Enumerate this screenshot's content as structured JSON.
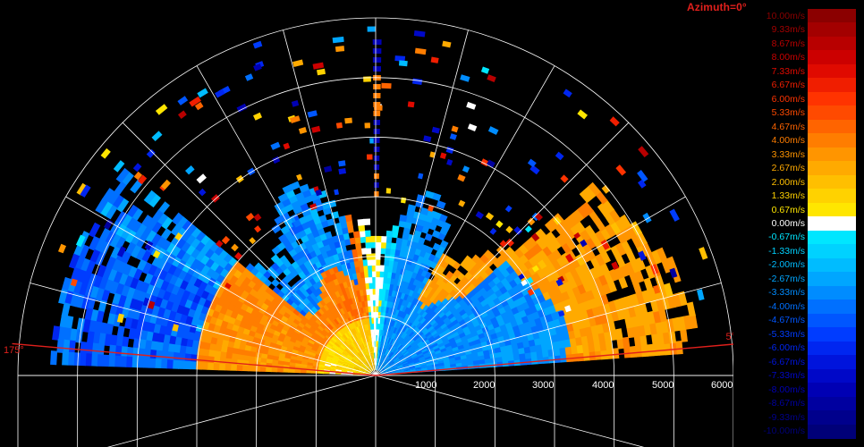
{
  "title": "Azimuth=0°",
  "left_angle_label": "175°",
  "right_angle_label": "5°",
  "range_labels": [
    "1000",
    "2000",
    "3000",
    "4000",
    "5000",
    "6000"
  ],
  "range_max": 6000,
  "colorbar": {
    "entries": [
      {
        "label": "10.00m/s",
        "color": "#8b0000"
      },
      {
        "label": "9.33m/s",
        "color": "#a30000"
      },
      {
        "label": "8.67m/s",
        "color": "#b80000"
      },
      {
        "label": "8.00m/s",
        "color": "#cc0000"
      },
      {
        "label": "7.33m/s",
        "color": "#e00a00"
      },
      {
        "label": "6.67m/s",
        "color": "#f01e00"
      },
      {
        "label": "6.00m/s",
        "color": "#ff3300"
      },
      {
        "label": "5.33m/s",
        "color": "#ff4a00"
      },
      {
        "label": "4.67m/s",
        "color": "#ff6400"
      },
      {
        "label": "4.00m/s",
        "color": "#ff7d00"
      },
      {
        "label": "3.33m/s",
        "color": "#ff9500"
      },
      {
        "label": "2.67m/s",
        "color": "#ffaa00"
      },
      {
        "label": "2.00m/s",
        "color": "#ffbf00"
      },
      {
        "label": "1.33m/s",
        "color": "#ffd200"
      },
      {
        "label": "0.67m/s",
        "color": "#ffe600"
      },
      {
        "label": "0.00m/s",
        "color": "#ffffff"
      },
      {
        "label": "-0.67m/s",
        "color": "#00e6ff"
      },
      {
        "label": "-1.33m/s",
        "color": "#00d2ff"
      },
      {
        "label": "-2.00m/s",
        "color": "#00bcff"
      },
      {
        "label": "-2.67m/s",
        "color": "#00a6ff"
      },
      {
        "label": "-3.33m/s",
        "color": "#008cff"
      },
      {
        "label": "-4.00m/s",
        "color": "#0070ff"
      },
      {
        "label": "-4.67m/s",
        "color": "#0056ff"
      },
      {
        "label": "-5.33m/s",
        "color": "#003cff"
      },
      {
        "label": "-6.00m/s",
        "color": "#0026f0"
      },
      {
        "label": "-6.67m/s",
        "color": "#0014dc"
      },
      {
        "label": "-7.33m/s",
        "color": "#0008c8"
      },
      {
        "label": "-8.00m/s",
        "color": "#0000b4"
      },
      {
        "label": "-8.67m/s",
        "color": "#0000a0"
      },
      {
        "label": "-9.33m/s",
        "color": "#00008c"
      },
      {
        "label": "-10.00m/s",
        "color": "#000078"
      }
    ]
  }
}
